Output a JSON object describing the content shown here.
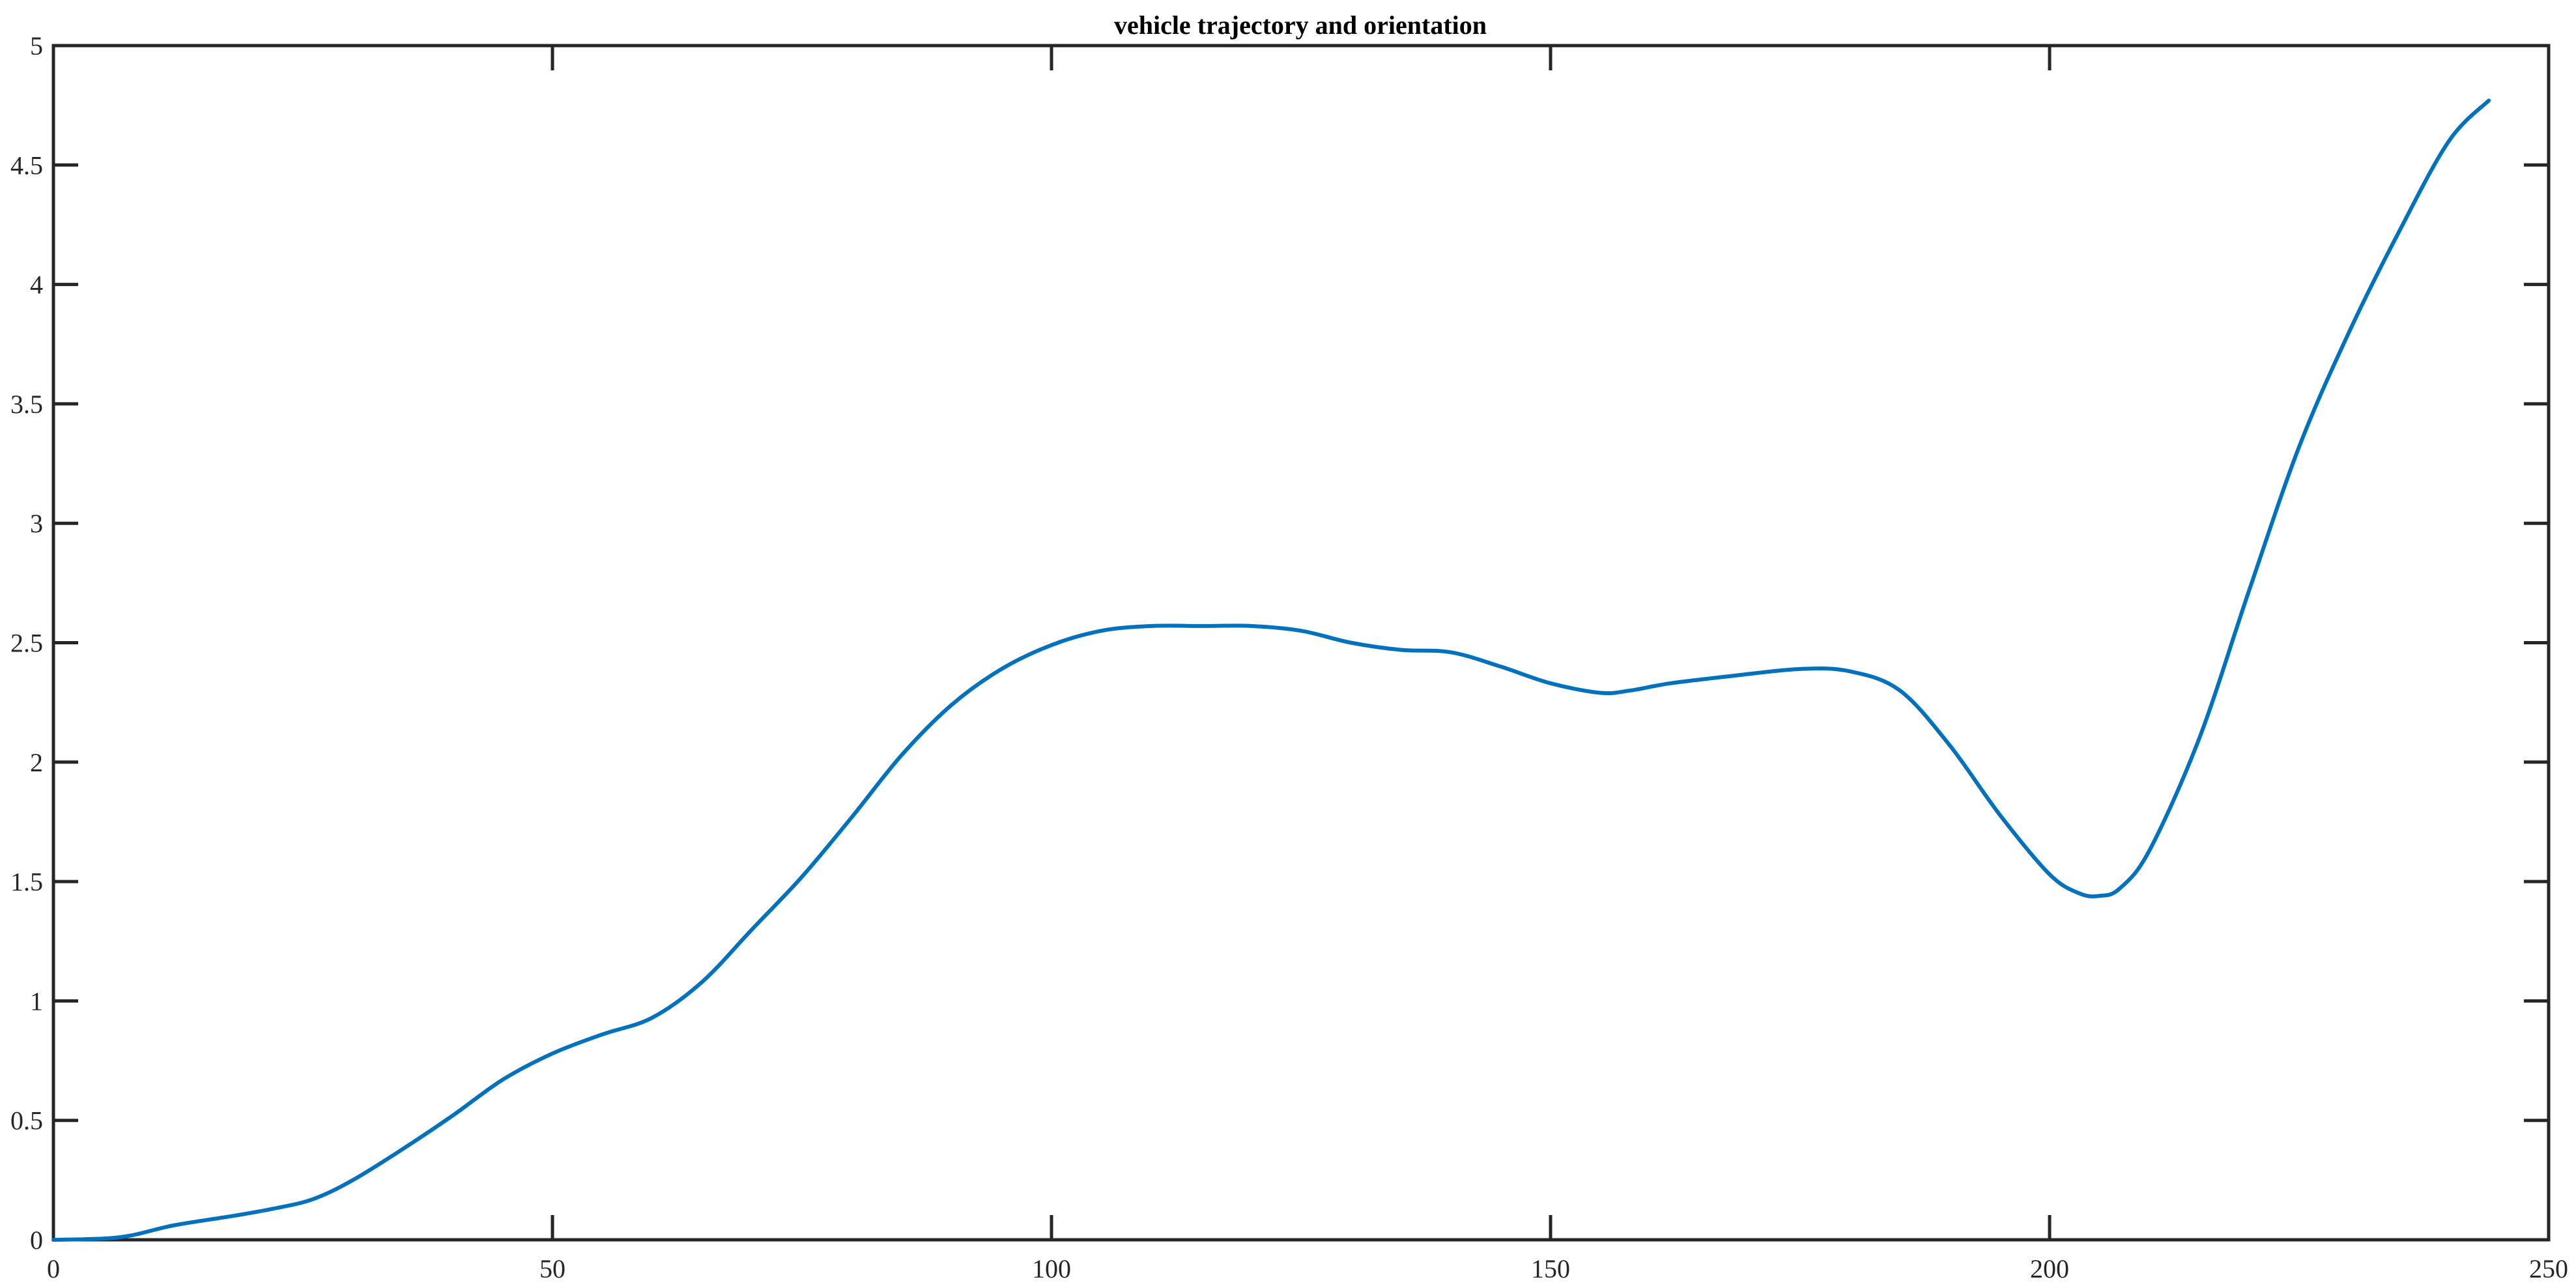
{
  "chart_data": {
    "type": "line",
    "title": "vehicle trajectory and orientation",
    "xlabel": "",
    "ylabel": "",
    "xlim": [
      0,
      250
    ],
    "ylim": [
      0,
      5
    ],
    "xticks": [
      0,
      50,
      100,
      150,
      200,
      250
    ],
    "yticks": [
      0,
      0.5,
      1,
      1.5,
      2,
      2.5,
      3,
      3.5,
      4,
      4.5,
      5
    ],
    "xtick_labels": [
      "0",
      "50",
      "100",
      "150",
      "200",
      "250"
    ],
    "ytick_labels": [
      "0",
      "0.5",
      "1",
      "1.5",
      "2",
      "2.5",
      "3",
      "3.5",
      "4",
      "4.5",
      "5"
    ],
    "grid": false,
    "series": [
      {
        "color": "#0072BD",
        "x": [
          0,
          5,
          8,
          12,
          18,
          22,
          26,
          30,
          35,
          40,
          45,
          50,
          55,
          60,
          65,
          70,
          75,
          80,
          85,
          90,
          95,
          100,
          105,
          110,
          115,
          120,
          125,
          130,
          135,
          140,
          145,
          150,
          155,
          158,
          162,
          168,
          175,
          180,
          185,
          190,
          195,
          200,
          203,
          205,
          207,
          210,
          215,
          220,
          225,
          230,
          235,
          240,
          244
        ],
        "y": [
          0,
          0.005,
          0.02,
          0.06,
          0.1,
          0.13,
          0.17,
          0.25,
          0.38,
          0.52,
          0.67,
          0.78,
          0.86,
          0.93,
          1.08,
          1.3,
          1.52,
          1.77,
          2.03,
          2.24,
          2.39,
          2.49,
          2.55,
          2.57,
          2.57,
          2.57,
          2.55,
          2.5,
          2.47,
          2.46,
          2.4,
          2.33,
          2.29,
          2.3,
          2.33,
          2.36,
          2.39,
          2.38,
          2.3,
          2.07,
          1.78,
          1.53,
          1.45,
          1.44,
          1.47,
          1.63,
          2.1,
          2.72,
          3.32,
          3.8,
          4.22,
          4.6,
          4.77
        ]
      }
    ]
  }
}
